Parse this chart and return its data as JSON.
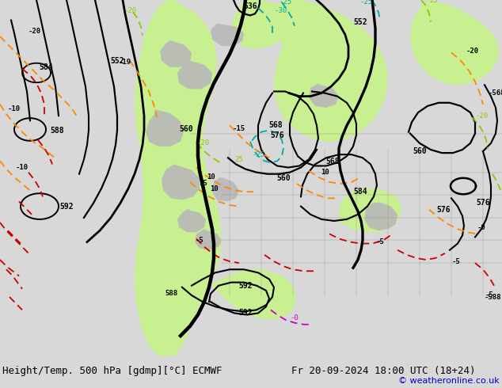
{
  "title_left": "Height/Temp. 500 hPa [gdmp][°C] ECMWF",
  "title_right": "Fr 20-09-2024 18:00 UTC (18+24)",
  "copyright": "© weatheronline.co.uk",
  "bg_color": "#d8d8d8",
  "map_bg_color": "#d8d8d8",
  "green_fill_color": "#c8f090",
  "fig_width": 6.34,
  "fig_height": 4.9,
  "dpi": 100,
  "copyright_color": "#0000cc"
}
